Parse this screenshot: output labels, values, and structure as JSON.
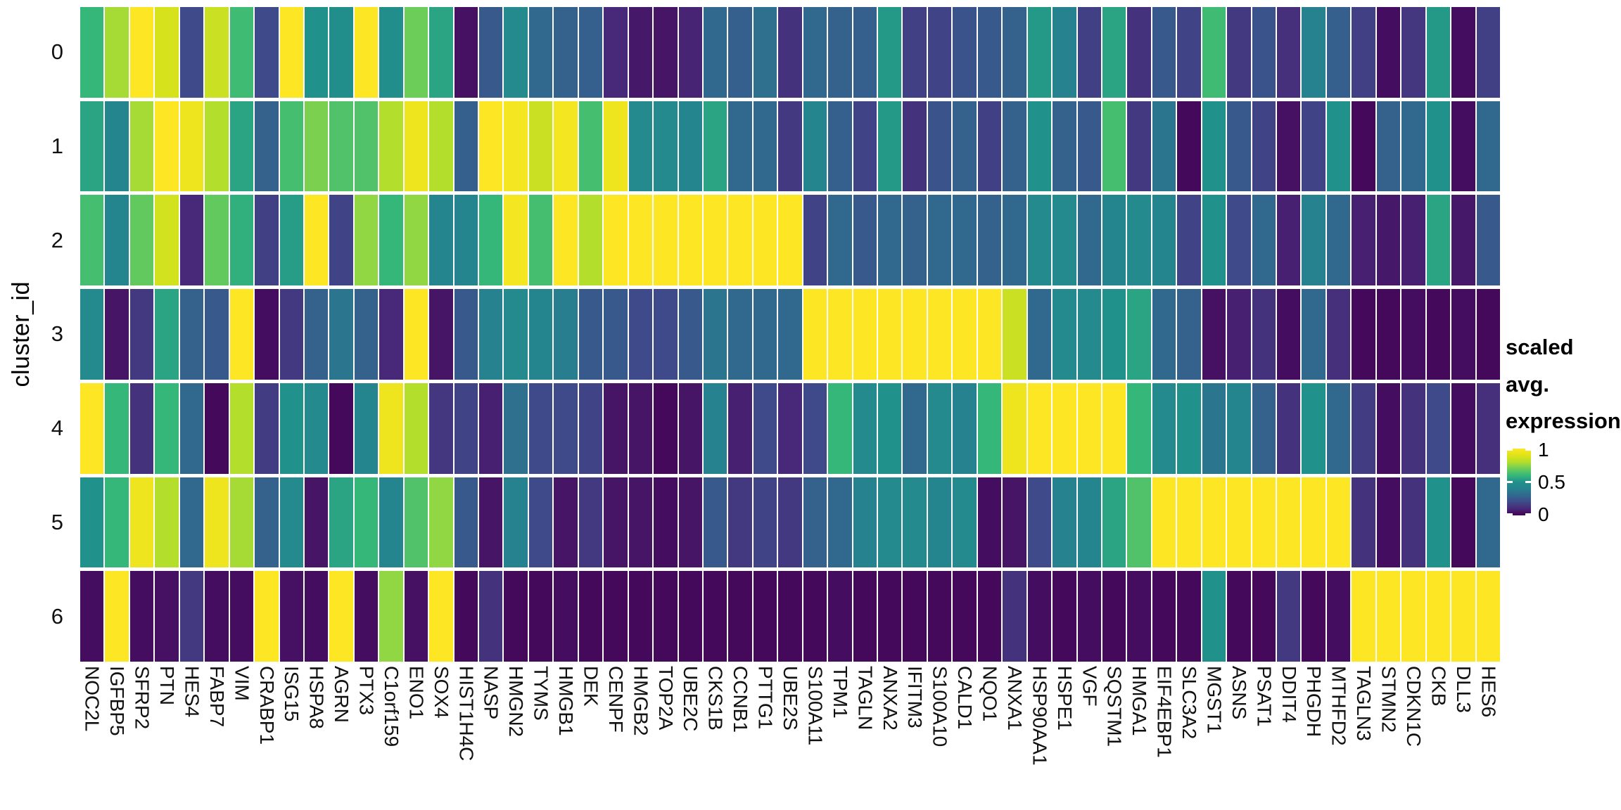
{
  "axes": {
    "y_title": "cluster_id",
    "row_labels": [
      "0",
      "1",
      "2",
      "3",
      "4",
      "5",
      "6"
    ]
  },
  "legend": {
    "title_line1": "scaled avg.",
    "title_line2": "expression",
    "tick_labels": [
      "1",
      "0.5",
      "0"
    ],
    "tick_values": [
      1,
      0.5,
      0
    ]
  },
  "chart_data": {
    "type": "heatmap",
    "title": "",
    "xlabel": "",
    "ylabel": "cluster_id",
    "legend_title": "scaled avg. expression",
    "value_range": [
      0,
      1
    ],
    "grid": false,
    "legend_position": "right",
    "colormap": "viridis",
    "palette_stops": [
      {
        "t": 0.0,
        "hex": "#440154"
      },
      {
        "t": 0.1,
        "hex": "#482878"
      },
      {
        "t": 0.2,
        "hex": "#3e4a89"
      },
      {
        "t": 0.3,
        "hex": "#31688e"
      },
      {
        "t": 0.4,
        "hex": "#26828e"
      },
      {
        "t": 0.5,
        "hex": "#21918c"
      },
      {
        "t": 0.6,
        "hex": "#35b779"
      },
      {
        "t": 0.7,
        "hex": "#6dcd59"
      },
      {
        "t": 0.8,
        "hex": "#b4de2c"
      },
      {
        "t": 0.9,
        "hex": "#dfe318"
      },
      {
        "t": 1.0,
        "hex": "#fde725"
      }
    ],
    "categories": [
      "NOC2L",
      "IGFBP5",
      "SFRP2",
      "PTN",
      "HES4",
      "FABP7",
      "VIM",
      "CRABP1",
      "ISG15",
      "HSPA8",
      "AGRN",
      "PTX3",
      "C1orf159",
      "ENO1",
      "SOX4",
      "HIST1H4C",
      "NASP",
      "HMGN2",
      "TYMS",
      "HMGB1",
      "DEK",
      "CENPF",
      "HMGB2",
      "TOP2A",
      "UBE2C",
      "CKS1B",
      "CCNB1",
      "PTTG1",
      "UBE2S",
      "S100A11",
      "TPM1",
      "TAGLN",
      "ANXA2",
      "IFITM3",
      "S100A10",
      "CALD1",
      "NQO1",
      "ANXA1",
      "HSP90AA1",
      "HSPE1",
      "VGF",
      "SQSTM1",
      "HMGA1",
      "EIF4EBP1",
      "SLC3A2",
      "MGST1",
      "ASNS",
      "PSAT1",
      "DDIT4",
      "PHGDH",
      "MTHFD2",
      "TAGLN3",
      "STMN2",
      "CDKN1C",
      "CKB",
      "DLL3",
      "HES6"
    ],
    "series": [
      {
        "name": "0",
        "values": [
          0.6,
          0.78,
          1.0,
          0.88,
          0.2,
          0.85,
          0.62,
          0.2,
          1.0,
          0.5,
          0.48,
          1.0,
          0.48,
          0.7,
          0.55,
          0.04,
          0.25,
          0.45,
          0.3,
          0.28,
          0.27,
          0.1,
          0.06,
          0.05,
          0.09,
          0.3,
          0.27,
          0.33,
          0.13,
          0.3,
          0.28,
          0.27,
          0.52,
          0.17,
          0.18,
          0.23,
          0.25,
          0.28,
          0.52,
          0.4,
          0.17,
          0.55,
          0.13,
          0.25,
          0.18,
          0.62,
          0.15,
          0.23,
          0.12,
          0.4,
          0.27,
          0.17,
          0.03,
          0.14,
          0.52,
          0.03,
          0.17
        ]
      },
      {
        "name": "1",
        "values": [
          0.55,
          0.42,
          0.78,
          1.0,
          0.95,
          0.8,
          0.55,
          0.28,
          0.63,
          0.72,
          0.65,
          0.65,
          0.8,
          0.95,
          0.8,
          0.27,
          1.0,
          0.97,
          0.85,
          0.97,
          0.63,
          0.95,
          0.45,
          0.45,
          0.42,
          0.55,
          0.3,
          0.3,
          0.15,
          0.42,
          0.27,
          0.18,
          0.52,
          0.13,
          0.23,
          0.28,
          0.17,
          0.28,
          0.5,
          0.28,
          0.25,
          0.63,
          0.15,
          0.35,
          0.02,
          0.5,
          0.25,
          0.18,
          0.04,
          0.18,
          0.5,
          0.02,
          0.28,
          0.3,
          0.5,
          0.03,
          0.3
        ]
      },
      {
        "name": "2",
        "values": [
          0.63,
          0.42,
          0.68,
          0.87,
          0.1,
          0.68,
          0.58,
          0.17,
          0.53,
          1.0,
          0.18,
          0.75,
          0.6,
          0.75,
          0.42,
          0.42,
          0.6,
          0.97,
          0.63,
          1.0,
          0.8,
          1.0,
          1.0,
          1.0,
          1.0,
          1.0,
          1.0,
          1.0,
          1.0,
          0.18,
          0.3,
          0.25,
          0.3,
          0.28,
          0.3,
          0.3,
          0.28,
          0.3,
          0.45,
          0.45,
          0.3,
          0.42,
          0.45,
          0.42,
          0.18,
          0.5,
          0.2,
          0.3,
          0.08,
          0.4,
          0.3,
          0.08,
          0.06,
          0.08,
          0.55,
          0.06,
          0.25
        ]
      },
      {
        "name": "3",
        "values": [
          0.45,
          0.05,
          0.15,
          0.55,
          0.28,
          0.25,
          1.0,
          0.03,
          0.15,
          0.28,
          0.35,
          0.28,
          0.1,
          1.0,
          0.05,
          0.25,
          0.4,
          0.45,
          0.42,
          0.38,
          0.25,
          0.25,
          0.2,
          0.2,
          0.25,
          0.35,
          0.3,
          0.3,
          0.3,
          1.0,
          1.0,
          1.0,
          1.0,
          1.0,
          1.0,
          1.0,
          1.0,
          0.85,
          0.3,
          0.45,
          0.45,
          0.5,
          0.55,
          0.3,
          0.28,
          0.04,
          0.08,
          0.13,
          0.03,
          0.3,
          0.12,
          0.02,
          0.02,
          0.03,
          0.02,
          0.03,
          0.02
        ]
      },
      {
        "name": "4",
        "values": [
          1.0,
          0.6,
          0.13,
          0.6,
          0.3,
          0.02,
          0.8,
          0.16,
          0.5,
          0.45,
          0.02,
          0.42,
          0.95,
          0.8,
          0.14,
          0.18,
          0.08,
          0.33,
          0.2,
          0.2,
          0.18,
          0.05,
          0.05,
          0.02,
          0.05,
          0.4,
          0.08,
          0.2,
          0.1,
          0.2,
          0.6,
          0.45,
          0.5,
          0.3,
          0.45,
          0.4,
          0.6,
          0.95,
          1.0,
          1.0,
          1.0,
          1.0,
          0.6,
          0.45,
          0.5,
          0.35,
          0.42,
          0.28,
          0.13,
          0.5,
          0.3,
          0.16,
          0.03,
          0.13,
          0.2,
          0.03,
          0.12
        ]
      },
      {
        "name": "5",
        "values": [
          0.5,
          0.6,
          0.95,
          0.8,
          0.3,
          0.95,
          0.78,
          0.28,
          0.45,
          0.05,
          0.55,
          0.6,
          0.42,
          0.65,
          0.75,
          0.25,
          0.05,
          0.4,
          0.2,
          0.05,
          0.15,
          0.05,
          0.05,
          0.03,
          0.05,
          0.25,
          0.15,
          0.18,
          0.15,
          0.28,
          0.3,
          0.4,
          0.45,
          0.45,
          0.42,
          0.45,
          0.03,
          0.05,
          0.2,
          0.4,
          0.42,
          0.55,
          0.65,
          1.0,
          1.0,
          1.0,
          1.0,
          1.0,
          1.0,
          1.0,
          1.0,
          0.13,
          0.03,
          0.13,
          0.5,
          0.02,
          0.3
        ]
      },
      {
        "name": "6",
        "values": [
          0.03,
          1.0,
          0.03,
          0.04,
          0.15,
          0.03,
          0.03,
          1.0,
          0.04,
          0.03,
          1.0,
          0.03,
          0.75,
          0.04,
          1.0,
          0.02,
          0.13,
          0.02,
          0.02,
          0.03,
          0.02,
          0.02,
          0.02,
          0.02,
          0.02,
          0.02,
          0.02,
          0.02,
          0.02,
          0.02,
          0.03,
          0.02,
          0.02,
          0.02,
          0.02,
          0.02,
          0.02,
          0.13,
          0.03,
          0.02,
          0.03,
          0.02,
          0.03,
          0.02,
          0.02,
          0.5,
          0.02,
          0.02,
          0.15,
          0.02,
          0.03,
          1.0,
          1.0,
          1.0,
          1.0,
          1.0,
          1.0
        ]
      }
    ]
  }
}
